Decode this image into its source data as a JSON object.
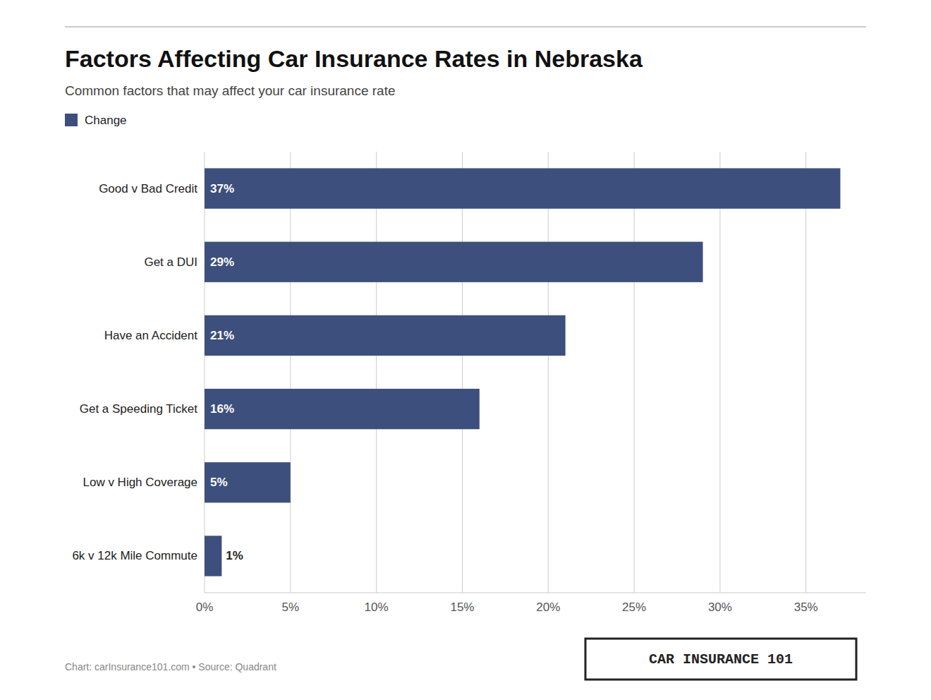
{
  "chart_data": {
    "type": "bar",
    "orientation": "horizontal",
    "title": "Factors Affecting Car Insurance Rates in Nebraska",
    "subtitle": "Common factors that may affect your car insurance rate",
    "categories": [
      "6k v 12k Mile Commute",
      "Low v High Coverage",
      "Get a Speeding Ticket",
      "Have an Accident",
      "Get a DUI",
      "Good v Bad Credit"
    ],
    "series": [
      {
        "name": "Change",
        "color": "#3d4f7c",
        "values": [
          1,
          5,
          16,
          21,
          29,
          37
        ],
        "value_labels": [
          "1%",
          "5%",
          "16%",
          "21%",
          "29%",
          "37%"
        ]
      }
    ],
    "data_labels": true,
    "xlim": [
      0,
      38.5
    ],
    "xticks": [
      {
        "value": 0,
        "label": "0%"
      },
      {
        "value": 5,
        "label": "5%"
      },
      {
        "value": 10,
        "label": "10%"
      },
      {
        "value": 15,
        "label": "15%"
      },
      {
        "value": 20,
        "label": "20%"
      },
      {
        "value": 25,
        "label": "25%"
      },
      {
        "value": 30,
        "label": "30%"
      },
      {
        "value": 35,
        "label": "35%"
      }
    ],
    "grid": true,
    "legend": "top-left",
    "annotations": [
      "Chart: carInsurance101.com • Source: Quadrant",
      "CAR INSURANCE 101"
    ]
  }
}
